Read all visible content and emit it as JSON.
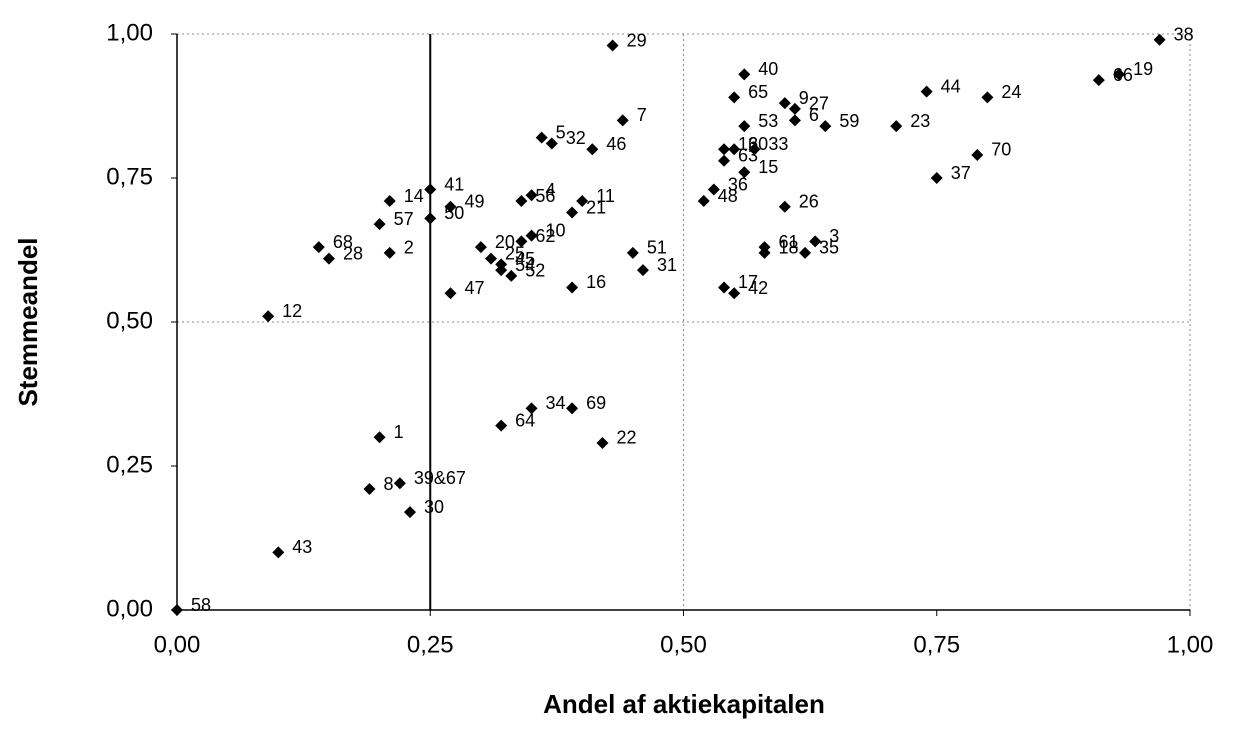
{
  "chart_data": {
    "type": "scatter",
    "xlabel": "Andel af aktiekapitalen",
    "ylabel": "Stemmeandel",
    "xlim": [
      0,
      1
    ],
    "ylim": [
      0,
      1
    ],
    "xticks": [
      {
        "value": 0,
        "label": "0,00"
      },
      {
        "value": 0.25,
        "label": "0,25"
      },
      {
        "value": 0.5,
        "label": "0,50"
      },
      {
        "value": 0.75,
        "label": "0,75"
      },
      {
        "value": 1,
        "label": "1,00"
      }
    ],
    "yticks": [
      {
        "value": 0,
        "label": "0,00"
      },
      {
        "value": 0.25,
        "label": "0,25"
      },
      {
        "value": 0.5,
        "label": "0,50"
      },
      {
        "value": 0.75,
        "label": "0,75"
      },
      {
        "value": 1,
        "label": "1,00"
      }
    ],
    "xgrid": [
      0.5,
      1
    ],
    "ygrid": [
      0.5,
      1
    ],
    "vline": 0.25,
    "color": "#000000",
    "labels": [
      "38",
      "29",
      "40",
      "19",
      "66",
      "44",
      "24",
      "65",
      "9",
      "27",
      "53",
      "6",
      "59",
      "23",
      "7",
      "5",
      "32",
      "46",
      "13",
      "60",
      "33",
      "70",
      "63",
      "15",
      "37",
      "36",
      "48",
      "14",
      "41",
      "49",
      "4",
      "56",
      "11",
      "21",
      "57",
      "50",
      "26",
      "10",
      "62",
      "20",
      "25",
      "45",
      "54",
      "52",
      "68",
      "28",
      "2",
      "61",
      "3",
      "35",
      "18",
      "51",
      "31",
      "17",
      "42",
      "16",
      "47",
      "12",
      "34",
      "69",
      "64",
      "22",
      "1",
      "39&67",
      "8",
      "30",
      "43",
      "58"
    ],
    "x": [
      0.97,
      0.43,
      0.56,
      0.93,
      0.91,
      0.74,
      0.8,
      0.55,
      0.6,
      0.61,
      0.56,
      0.61,
      0.64,
      0.71,
      0.44,
      0.36,
      0.37,
      0.41,
      0.54,
      0.55,
      0.57,
      0.79,
      0.54,
      0.56,
      0.75,
      0.53,
      0.52,
      0.21,
      0.25,
      0.27,
      0.35,
      0.34,
      0.4,
      0.39,
      0.2,
      0.25,
      0.6,
      0.35,
      0.34,
      0.3,
      0.31,
      0.32,
      0.32,
      0.33,
      0.14,
      0.15,
      0.21,
      0.58,
      0.63,
      0.62,
      0.58,
      0.45,
      0.46,
      0.54,
      0.55,
      0.39,
      0.27,
      0.09,
      0.35,
      0.39,
      0.32,
      0.42,
      0.2,
      0.22,
      0.19,
      0.23,
      0.1,
      0
    ],
    "y": [
      0.99,
      0.98,
      0.93,
      0.93,
      0.92,
      0.9,
      0.89,
      0.89,
      0.88,
      0.87,
      0.84,
      0.85,
      0.84,
      0.84,
      0.85,
      0.82,
      0.81,
      0.8,
      0.8,
      0.8,
      0.8,
      0.79,
      0.78,
      0.76,
      0.75,
      0.73,
      0.71,
      0.71,
      0.73,
      0.7,
      0.72,
      0.71,
      0.71,
      0.69,
      0.67,
      0.68,
      0.7,
      0.65,
      0.64,
      0.63,
      0.61,
      0.6,
      0.59,
      0.58,
      0.63,
      0.61,
      0.62,
      0.63,
      0.64,
      0.62,
      0.62,
      0.62,
      0.59,
      0.56,
      0.55,
      0.56,
      0.55,
      0.51,
      0.35,
      0.35,
      0.32,
      0.29,
      0.3,
      0.22,
      0.21,
      0.17,
      0.1,
      0
    ]
  }
}
